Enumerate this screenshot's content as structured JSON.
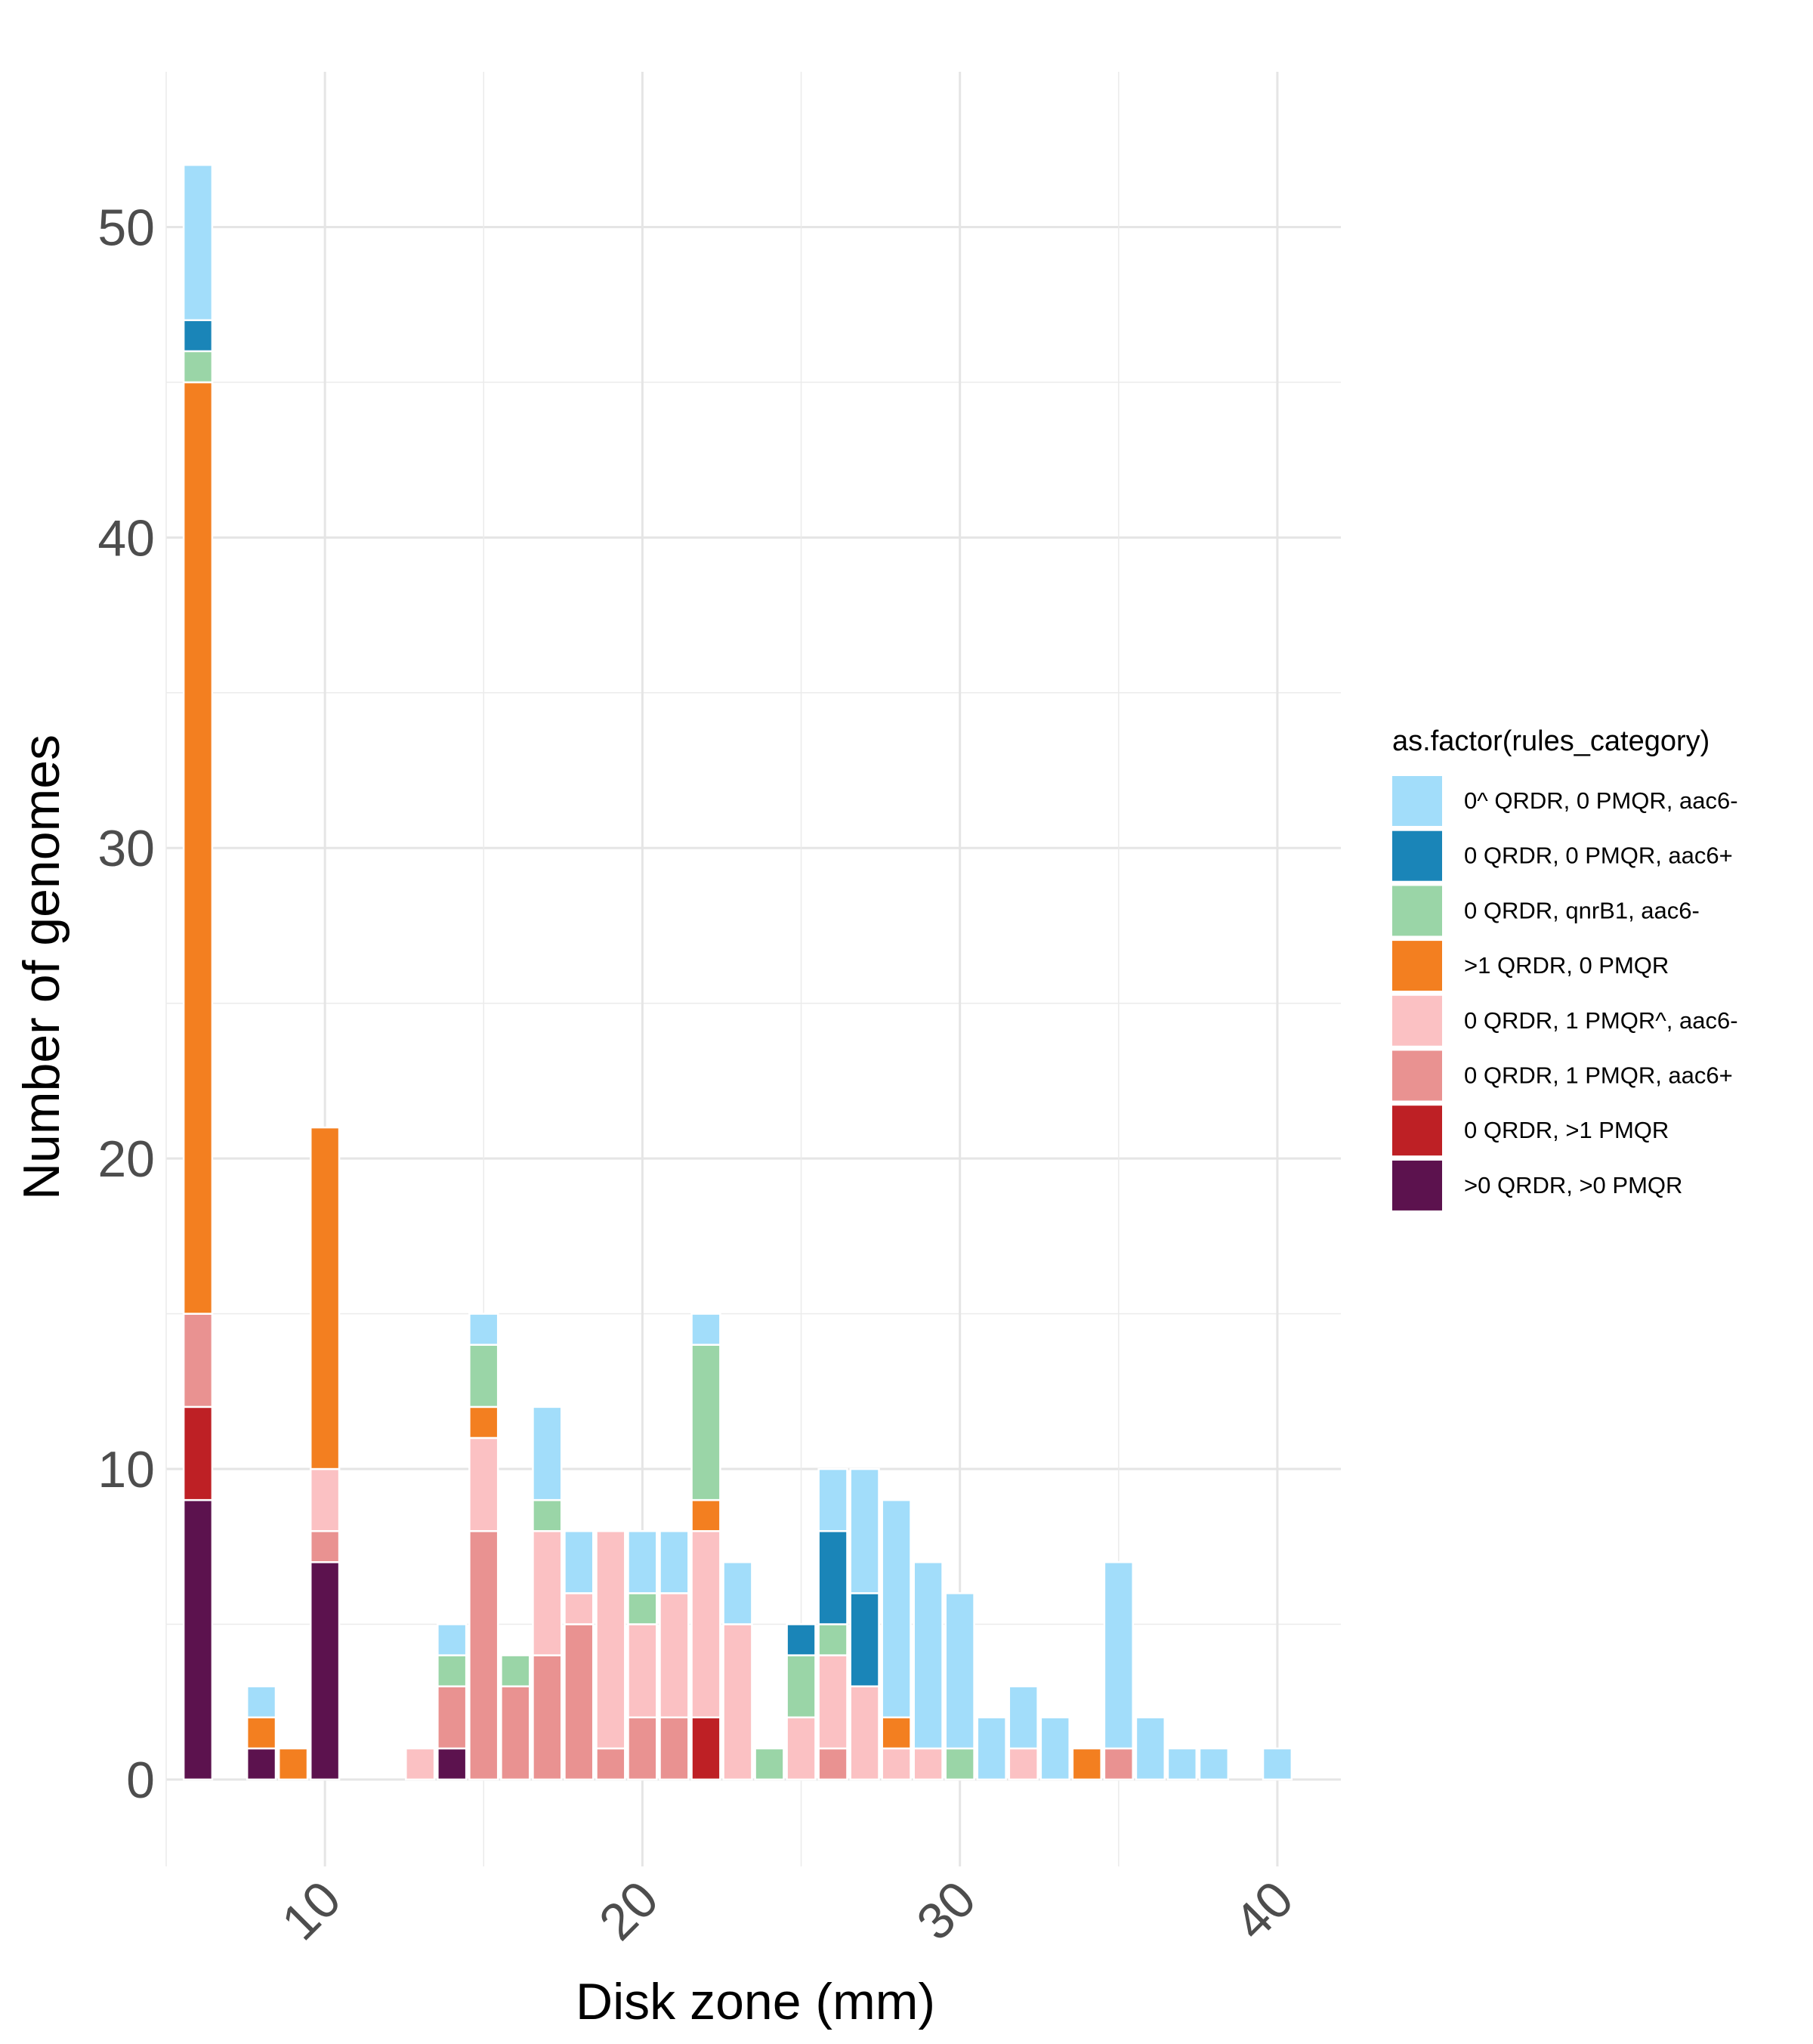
{
  "chart_data": {
    "type": "bar",
    "stacked": true,
    "xlabel": "Disk zone (mm)",
    "ylabel": "Number of genomes",
    "xlim": [
      5,
      42
    ],
    "ylim": [
      -2.8,
      55
    ],
    "xticks": [
      "10",
      "20",
      "30",
      "40"
    ],
    "yticks": [
      "0",
      "10",
      "20",
      "30",
      "40",
      "50"
    ],
    "grid": true,
    "legend": {
      "title": "as.factor(rules_category)",
      "placement": "right"
    },
    "x": [
      6,
      8,
      9,
      10,
      13,
      14,
      15,
      16,
      17,
      18,
      19,
      20,
      21,
      22,
      23,
      24,
      25,
      26,
      27,
      28,
      29,
      30,
      31,
      32,
      33,
      34,
      35,
      36,
      37,
      38,
      40
    ],
    "series": [
      {
        "name": ">0 QRDR, >0 PMQR",
        "color": "#5C124E",
        "values": [
          9,
          1,
          0,
          7,
          0,
          1,
          0,
          0,
          0,
          0,
          0,
          0,
          0,
          0,
          0,
          0,
          0,
          0,
          0,
          0,
          0,
          0,
          0,
          0,
          0,
          0,
          0,
          0,
          0,
          0,
          0
        ]
      },
      {
        "name": "0 QRDR, >1 PMQR",
        "color": "#BE2025",
        "values": [
          3,
          0,
          0,
          0,
          0,
          0,
          0,
          0,
          0,
          0,
          0,
          0,
          0,
          2,
          0,
          0,
          0,
          0,
          0,
          0,
          0,
          0,
          0,
          0,
          0,
          0,
          0,
          0,
          0,
          0,
          0
        ]
      },
      {
        "name": "0 QRDR, 1 PMQR, aac6+",
        "color": "#E99291",
        "values": [
          3,
          0,
          0,
          1,
          0,
          2,
          8,
          3,
          4,
          5,
          1,
          2,
          2,
          0,
          0,
          0,
          0,
          1,
          0,
          0,
          0,
          0,
          0,
          0,
          0,
          0,
          1,
          0,
          0,
          0,
          0
        ]
      },
      {
        "name": "0 QRDR, 1 PMQR^, aac6-",
        "color": "#FBC1C3",
        "values": [
          0,
          0,
          0,
          2,
          1,
          0,
          3,
          0,
          4,
          1,
          7,
          3,
          4,
          6,
          5,
          0,
          2,
          3,
          3,
          1,
          1,
          0,
          0,
          1,
          0,
          0,
          0,
          0,
          0,
          0,
          0
        ]
      },
      {
        "name": ">1 QRDR, 0 PMQR",
        "color": "#F37F20",
        "values": [
          30,
          1,
          1,
          11,
          0,
          0,
          1,
          0,
          0,
          0,
          0,
          0,
          0,
          1,
          0,
          0,
          0,
          0,
          0,
          1,
          0,
          0,
          0,
          0,
          0,
          1,
          0,
          0,
          0,
          0,
          0
        ]
      },
      {
        "name": "0 QRDR, qnrB1, aac6-",
        "color": "#9AD5A7",
        "values": [
          1,
          0,
          0,
          0,
          0,
          1,
          2,
          1,
          1,
          0,
          0,
          1,
          0,
          5,
          0,
          1,
          2,
          1,
          0,
          0,
          0,
          1,
          0,
          0,
          0,
          0,
          0,
          0,
          0,
          0,
          0
        ]
      },
      {
        "name": "0 QRDR, 0 PMQR, aac6+",
        "color": "#1A85B8",
        "values": [
          1,
          0,
          0,
          0,
          0,
          0,
          0,
          0,
          0,
          0,
          0,
          0,
          0,
          0,
          0,
          0,
          1,
          3,
          3,
          0,
          0,
          0,
          0,
          0,
          0,
          0,
          0,
          0,
          0,
          0,
          0
        ]
      },
      {
        "name": "0^ QRDR, 0 PMQR, aac6-",
        "color": "#A2DDFA",
        "values": [
          5,
          1,
          0,
          0,
          0,
          1,
          1,
          0,
          3,
          2,
          0,
          2,
          2,
          1,
          2,
          0,
          0,
          2,
          4,
          7,
          6,
          5,
          2,
          2,
          2,
          0,
          6,
          2,
          1,
          1,
          1
        ]
      }
    ],
    "legend_order": [
      "0^ QRDR, 0 PMQR, aac6-",
      "0 QRDR, 0 PMQR, aac6+",
      "0 QRDR, qnrB1, aac6-",
      ">1 QRDR, 0 PMQR",
      "0 QRDR, 1 PMQR^, aac6-",
      "0 QRDR, 1 PMQR, aac6+",
      "0 QRDR, >1 PMQR",
      ">0 QRDR, >0 PMQR"
    ]
  }
}
